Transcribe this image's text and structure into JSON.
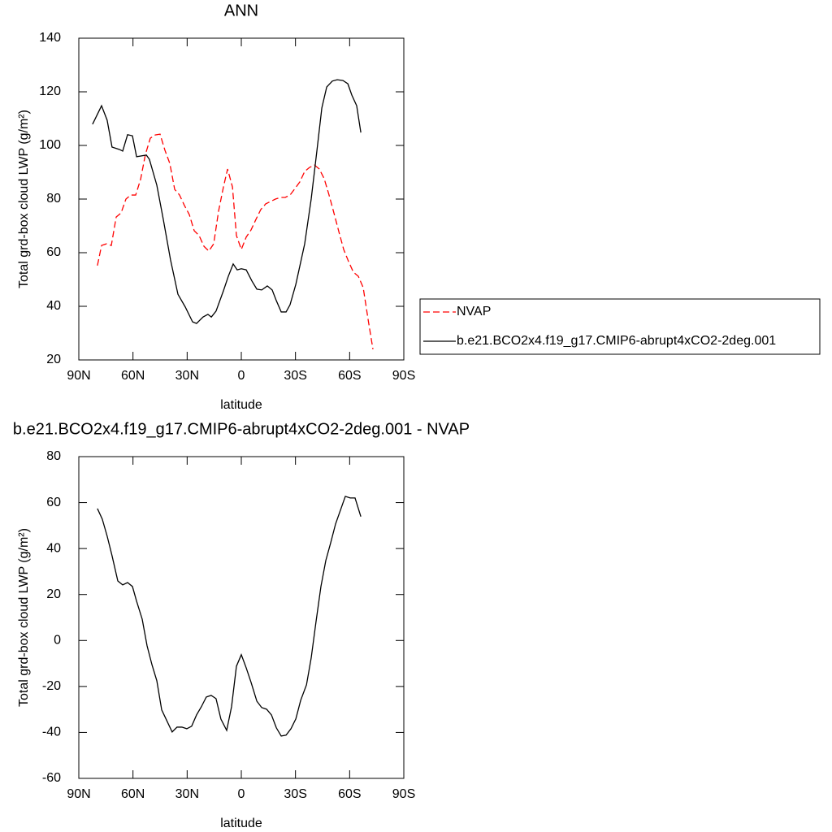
{
  "chart_data": [
    {
      "type": "line",
      "title": "ANN",
      "xlabel": "latitude",
      "ylabel": "Total grd-box cloud LWP (g/m²)",
      "xlim": [
        90,
        -90
      ],
      "xticks": [
        {
          "value": 90,
          "label": "90N"
        },
        {
          "value": 60,
          "label": "60N"
        },
        {
          "value": 30,
          "label": "30N"
        },
        0,
        {
          "value": -30,
          "label": "30S"
        },
        {
          "value": -60,
          "label": "60S"
        },
        {
          "value": -90,
          "label": "90S"
        }
      ],
      "ylim": [
        20,
        140
      ],
      "yticks": [
        20,
        40,
        60,
        80,
        100,
        120,
        140
      ],
      "legend": "outside right",
      "series": [
        {
          "name": "NVAP",
          "color": "#ff0000",
          "dashed": true,
          "x": [
            79.7,
            77.4,
            74.7,
            72,
            69.3,
            66.6,
            63.9,
            61.2,
            58.5,
            55.8,
            53.1,
            50.4,
            47.7,
            45,
            42.3,
            39.6,
            36.9,
            34.2,
            31.5,
            28.8,
            26.1,
            23.4,
            20.7,
            18,
            15.3,
            12.6,
            9.9,
            7.6,
            4.9,
            2.7,
            0,
            -2.7,
            -5.4,
            -8.1,
            -10.8,
            -13.5,
            -16.2,
            -18.9,
            -21.6,
            -24.3,
            -27,
            -29.7,
            -32.4,
            -35.1,
            -37.8,
            -40.5,
            -43.2,
            -45.9,
            -48.6,
            -51.3,
            -54,
            -56.7,
            -59.4,
            -62.1,
            -64.8,
            -67.5,
            -70.2,
            -72.9
          ],
          "values": [
            55.2,
            62.7,
            63.3,
            62.7,
            73.3,
            74.8,
            80,
            81.5,
            81.5,
            87.3,
            96.7,
            102.7,
            103.9,
            104.2,
            98.2,
            93.3,
            83.6,
            81.5,
            77.6,
            74.2,
            68.2,
            66.4,
            62.4,
            60.6,
            63.3,
            75.5,
            84.5,
            91.2,
            84.5,
            66.4,
            61.2,
            65.8,
            68.5,
            72.4,
            76.1,
            78.2,
            79.1,
            80,
            80.6,
            80.6,
            81.5,
            83.9,
            86.4,
            90.3,
            91.8,
            92.7,
            91.2,
            87.6,
            81.5,
            74.8,
            67.9,
            61.2,
            56.7,
            52.7,
            51.2,
            47,
            35.2,
            24
          ]
        },
        {
          "name": "b.e21.BCO2x4.f19_g17.CMIP6-abrupt4xCO2-2deg.001",
          "color": "#000000",
          "dashed": false,
          "x": [
            82.4,
            77.4,
            74.3,
            71.6,
            67.5,
            65.7,
            63,
            60.3,
            58,
            52.6,
            50.9,
            46.8,
            43.2,
            39.2,
            35.1,
            31,
            27,
            24.8,
            21.2,
            18.5,
            16.6,
            14,
            9.9,
            7.2,
            4.5,
            2.3,
            0,
            -2.7,
            -5.9,
            -8.6,
            -11.3,
            -14.4,
            -17.1,
            -19.4,
            -22.1,
            -24.8,
            -27,
            -30.2,
            -35.1,
            -38.7,
            -41.9,
            -44.6,
            -47.3,
            -50.4,
            -53.1,
            -56.3,
            -59,
            -61.2,
            -63.9,
            -66.2
          ],
          "values": [
            107.9,
            114.8,
            109.4,
            99.4,
            98.5,
            97.9,
            104,
            103.6,
            95.8,
            96.4,
            94.8,
            85.2,
            72.4,
            57.3,
            44.5,
            39.7,
            34.2,
            33.6,
            36,
            37,
            36,
            38.2,
            45.8,
            51.2,
            55.8,
            53.6,
            54,
            53.6,
            49.4,
            46.4,
            46.1,
            47.6,
            46.1,
            42.1,
            37.9,
            37.9,
            40.6,
            48.2,
            63.3,
            80,
            98.2,
            114,
            121.8,
            124,
            124.5,
            124.2,
            123,
            118.8,
            114.8,
            104.8
          ]
        }
      ]
    },
    {
      "type": "line",
      "title": "b.e21.BCO2x4.f19_g17.CMIP6-abrupt4xCO2-2deg.001 - NVAP",
      "xlabel": "latitude",
      "ylabel": "Total grd-box cloud LWP (g/m²)",
      "xlim": [
        90,
        -90
      ],
      "xticks": [
        {
          "value": 90,
          "label": "90N"
        },
        {
          "value": 60,
          "label": "60N"
        },
        {
          "value": 30,
          "label": "30N"
        },
        0,
        {
          "value": -30,
          "label": "30S"
        },
        {
          "value": -60,
          "label": "60S"
        },
        {
          "value": -90,
          "label": "90S"
        }
      ],
      "ylim": [
        -60,
        80
      ],
      "yticks": [
        -60,
        -40,
        -20,
        0,
        20,
        40,
        60,
        80
      ],
      "series": [
        {
          "color": "#000000",
          "dashed": false,
          "x": [
            79.7,
            77,
            74.3,
            71.6,
            68.4,
            65.7,
            63,
            60.3,
            58,
            54.9,
            52.2,
            49.5,
            46.8,
            44.1,
            40.9,
            38.3,
            35.6,
            32.9,
            30.2,
            27.5,
            24.8,
            22.1,
            19.4,
            16.7,
            14,
            11.3,
            8.1,
            5.4,
            2.7,
            0,
            -2.7,
            -5.4,
            -8.6,
            -11.3,
            -14,
            -16.7,
            -19.4,
            -22.1,
            -24.8,
            -27.5,
            -30.2,
            -32.9,
            -36.1,
            -38.7,
            -41.4,
            -44.1,
            -46.8,
            -49.5,
            -52.2,
            -54.9,
            -57.6,
            -60.3,
            -63,
            -66.2
          ],
          "values": [
            57.4,
            52.8,
            45.4,
            36.9,
            25.9,
            24.2,
            25.2,
            23.5,
            17.1,
            9.3,
            -2.3,
            -10.5,
            -17.5,
            -30.2,
            -35.5,
            -39.8,
            -37.7,
            -37.7,
            -38.4,
            -37.3,
            -32.4,
            -28.8,
            -24.6,
            -23.9,
            -25.3,
            -34.2,
            -39.1,
            -28.8,
            -11.2,
            -6.2,
            -11.9,
            -18.2,
            -26.4,
            -29.2,
            -29.9,
            -32.4,
            -38,
            -41.6,
            -41.2,
            -38.4,
            -34.1,
            -26,
            -19.3,
            -7.6,
            8.3,
            23.5,
            34.8,
            42.5,
            50.7,
            56.7,
            62.7,
            62,
            62,
            53.9
          ]
        }
      ]
    }
  ]
}
